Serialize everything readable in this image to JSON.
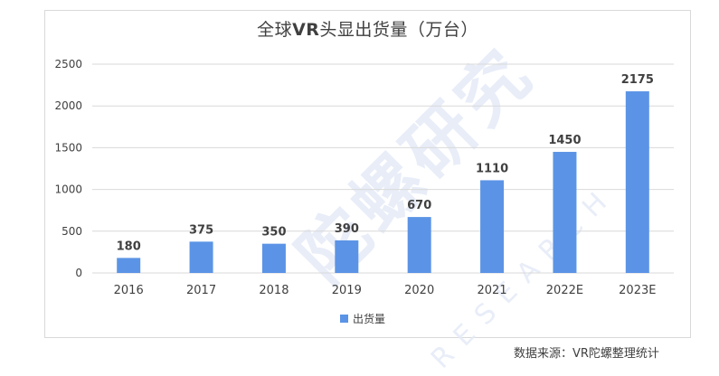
{
  "chart_data": {
    "type": "bar",
    "title_prefix": "全球",
    "title_bold": "VR",
    "title_suffix": "头显出货量（万台）",
    "categories": [
      "2016",
      "2017",
      "2018",
      "2019",
      "2020",
      "2021",
      "2022E",
      "2023E"
    ],
    "series": [
      {
        "name": "出货量",
        "values": [
          180,
          375,
          350,
          390,
          670,
          1110,
          1450,
          2175
        ],
        "color": "#5b94e6"
      }
    ],
    "ylim": [
      0,
      2500
    ],
    "yticks": [
      0,
      500,
      1000,
      1500,
      2000,
      2500
    ],
    "grid": true,
    "legend_position": "bottom",
    "data_labels": true
  },
  "source_note": "数据来源：VR陀螺整理统计",
  "watermark": "陀螺研究",
  "watermark_sub": "RESEARCH",
  "colors": {
    "bar": "#5b94e6",
    "grid": "#d9d9d9",
    "text": "#404040"
  }
}
